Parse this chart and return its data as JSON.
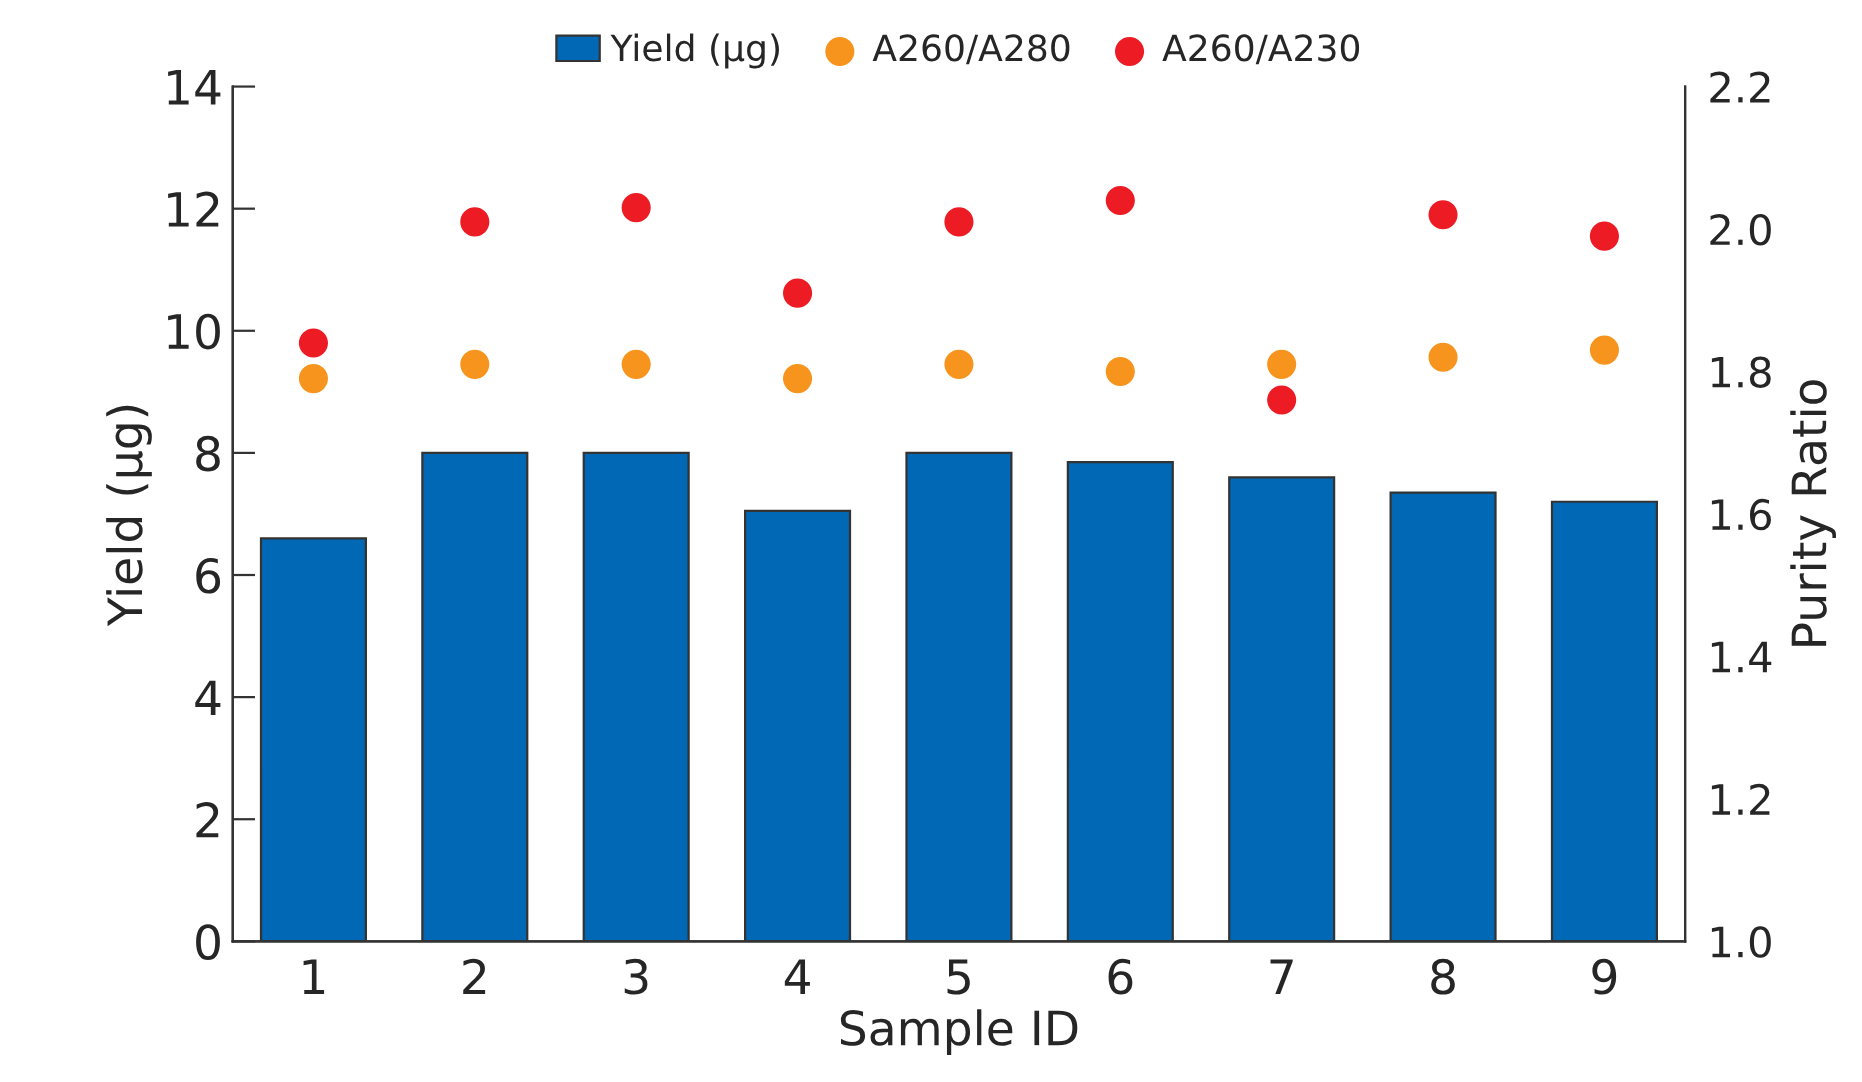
{
  "chart_data": {
    "type": "bar",
    "xlabel": "Sample ID",
    "ylabel": "Yield (µg)",
    "y2label": "Purity Ratio",
    "categories": [
      "1",
      "2",
      "3",
      "4",
      "5",
      "6",
      "7",
      "8",
      "9"
    ],
    "series": [
      {
        "name": "Yield (µg)",
        "color": "#0068b5",
        "values": [
          6.6,
          8.0,
          8.0,
          7.05,
          8.0,
          7.85,
          7.6,
          7.35,
          7.2
        ]
      },
      {
        "name": "A260/A280",
        "type": "scatter",
        "axis": "y2",
        "color": "#f7941d",
        "values": [
          1.79,
          1.81,
          1.81,
          1.79,
          1.81,
          1.8,
          1.81,
          1.82,
          1.83
        ]
      },
      {
        "name": "A260/A230",
        "type": "scatter",
        "axis": "y2",
        "color": "#ed1c24",
        "values": [
          1.84,
          2.01,
          2.03,
          1.91,
          2.01,
          2.04,
          1.76,
          2.02,
          1.99
        ]
      }
    ],
    "ylim": [
      0,
      14
    ],
    "yticks": [
      0,
      2,
      4,
      6,
      8,
      10,
      12,
      14
    ],
    "y2lim": [
      1.0,
      2.2
    ],
    "y2ticks": [
      {
        "value": 1.0,
        "label": "1.0"
      },
      {
        "value": 1.2,
        "label": "1.2"
      },
      {
        "value": 1.4,
        "label": "1.4"
      },
      {
        "value": 1.6,
        "label": "1.6"
      },
      {
        "value": 1.8,
        "label": "1.8"
      },
      {
        "value": 2.0,
        "label": "2.0"
      },
      {
        "value": 2.2,
        "label": "2.2"
      }
    ],
    "grid": false,
    "legend": "top",
    "marker": "circle"
  }
}
